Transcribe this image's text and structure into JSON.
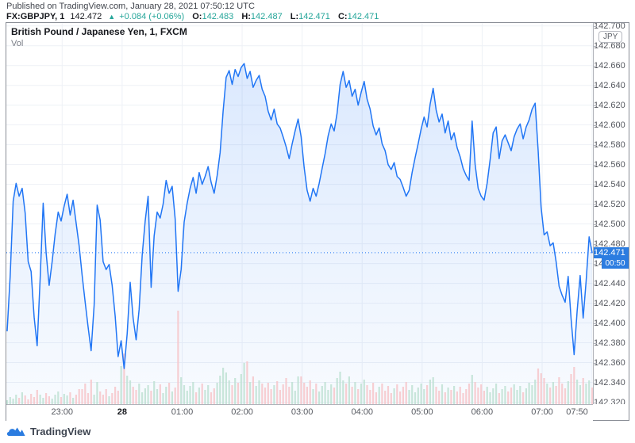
{
  "header": {
    "published_line": "Published on TradingView.com, January 28, 2021 07:50:12 UTC",
    "symbol": "FX:GBPJPY, 1",
    "last_price": "142.472",
    "change_arrow": "▲",
    "change": "+0.084 (+0.06%)",
    "ohlc": [
      {
        "label": "O:",
        "value": "142.483"
      },
      {
        "label": "H:",
        "value": "142.487"
      },
      {
        "label": "L:",
        "value": "142.471"
      },
      {
        "label": "C:",
        "value": "142.471"
      }
    ]
  },
  "chart": {
    "legend_title": "British Pound / Japanese Yen, 1, FXCM",
    "legend_vol": "Vol",
    "currency_badge": "JPY",
    "price_badge": "142.471",
    "countdown_badge": "00:50",
    "colors": {
      "accent_teal": "#26a69a",
      "line_blue": "#2176f5",
      "badge_blue": "#2b7ce0",
      "area_top": "rgba(33,118,245,0.16)",
      "area_bottom": "rgba(33,118,245,0.03)",
      "volume_up": "#c2e2d6",
      "volume_down": "#f6c9cd",
      "grid": "#eef1f6",
      "text_dark": "#16181d",
      "text_gray": "#55585f"
    }
  },
  "footer": {
    "logo_text": "TradingView"
  },
  "chart_data": {
    "type": "line",
    "title": "British Pound / Japanese Yen, 1, FXCM",
    "symbol": "GBPJPY",
    "interval": "1 minute",
    "start_time": "22:05",
    "end_time": "07:50",
    "interval_minutes": 3,
    "total_minutes": 585,
    "current_price": 142.471,
    "ylabel": "JPY",
    "grid": true,
    "legend_position": "top-left",
    "axis": {
      "y_top": 142.703,
      "y_bottom": 142.318
    },
    "y_ticks": [
      142.32,
      142.34,
      142.36,
      142.38,
      142.4,
      142.42,
      142.44,
      142.46,
      142.48,
      142.5,
      142.52,
      142.54,
      142.56,
      142.58,
      142.6,
      142.62,
      142.64,
      142.66,
      142.68,
      142.7
    ],
    "x_ticks": [
      {
        "label": "23:00",
        "min": 55
      },
      {
        "label": "28",
        "min": 115,
        "bold": true
      },
      {
        "label": "01:00",
        "min": 175
      },
      {
        "label": "02:00",
        "min": 235
      },
      {
        "label": "03:00",
        "min": 295
      },
      {
        "label": "04:00",
        "min": 355
      },
      {
        "label": "05:00",
        "min": 415
      },
      {
        "label": "06:00",
        "min": 475
      },
      {
        "label": "07:00",
        "min": 535
      },
      {
        "label": "07:50",
        "min": 585
      }
    ],
    "series": [
      {
        "name": "close",
        "values": [
          142.392,
          142.447,
          142.523,
          142.541,
          142.528,
          142.536,
          142.511,
          142.462,
          142.452,
          142.406,
          142.377,
          142.445,
          142.521,
          142.471,
          142.438,
          142.462,
          142.49,
          142.512,
          142.503,
          142.518,
          142.53,
          142.509,
          142.524,
          142.501,
          142.478,
          142.448,
          142.421,
          142.396,
          142.372,
          142.418,
          142.519,
          142.504,
          142.462,
          142.454,
          142.459,
          142.438,
          142.407,
          142.366,
          142.382,
          142.354,
          142.389,
          142.441,
          142.405,
          142.383,
          142.414,
          142.468,
          142.503,
          142.528,
          142.436,
          142.488,
          142.512,
          142.506,
          142.52,
          142.544,
          142.531,
          142.538,
          142.505,
          142.432,
          142.454,
          142.502,
          142.521,
          142.536,
          142.547,
          142.531,
          142.552,
          142.54,
          142.548,
          142.558,
          142.542,
          142.531,
          142.549,
          142.572,
          142.614,
          142.648,
          142.655,
          142.641,
          142.656,
          142.649,
          142.658,
          142.662,
          142.647,
          142.654,
          142.638,
          142.645,
          142.65,
          142.636,
          142.629,
          142.614,
          142.605,
          142.616,
          142.601,
          142.597,
          142.588,
          142.578,
          142.566,
          142.581,
          142.594,
          142.606,
          142.588,
          142.557,
          142.534,
          142.523,
          142.536,
          142.528,
          142.541,
          142.556,
          142.571,
          142.589,
          142.601,
          142.594,
          142.612,
          142.641,
          142.654,
          142.638,
          142.645,
          142.629,
          142.636,
          142.62,
          142.633,
          142.644,
          142.626,
          142.616,
          142.599,
          142.59,
          142.597,
          142.581,
          142.574,
          142.56,
          142.555,
          142.562,
          142.548,
          142.545,
          142.537,
          142.528,
          142.534,
          142.552,
          142.567,
          142.581,
          142.596,
          142.608,
          142.598,
          142.621,
          142.637,
          142.615,
          142.603,
          142.611,
          142.592,
          142.604,
          142.585,
          142.592,
          142.577,
          142.568,
          142.556,
          142.549,
          142.544,
          142.604,
          142.56,
          142.536,
          142.528,
          142.524,
          142.541,
          142.565,
          142.592,
          142.598,
          142.566,
          142.584,
          142.59,
          142.582,
          142.574,
          142.588,
          142.596,
          142.601,
          142.586,
          142.598,
          142.605,
          142.616,
          142.622,
          142.574,
          142.517,
          142.489,
          142.492,
          142.478,
          142.481,
          142.462,
          142.437,
          142.428,
          142.421,
          142.447,
          142.404,
          142.368,
          142.412,
          142.448,
          142.405,
          142.442,
          142.487,
          142.471
        ]
      }
    ],
    "volume": {
      "name": "Vol",
      "values": [
        5,
        9,
        7,
        12,
        8,
        15,
        11,
        6,
        13,
        9,
        18,
        12,
        8,
        14,
        10,
        7,
        12,
        16,
        9,
        13,
        11,
        15,
        8,
        12,
        19,
        19,
        26,
        14,
        31,
        12,
        28,
        16,
        12,
        19,
        10,
        14,
        22,
        17,
        48,
        64,
        36,
        30,
        22,
        18,
        26,
        15,
        20,
        24,
        17,
        29,
        19,
        25,
        14,
        22,
        27,
        16,
        21,
        118,
        34,
        24,
        17,
        23,
        28,
        15,
        21,
        26,
        18,
        24,
        15,
        20,
        27,
        36,
        46,
        40,
        30,
        24,
        33,
        27,
        38,
        52,
        54,
        28,
        35,
        23,
        30,
        26,
        21,
        27,
        19,
        24,
        29,
        18,
        25,
        33,
        22,
        28,
        17,
        35,
        35,
        27,
        22,
        30,
        19,
        26,
        16,
        23,
        28,
        18,
        25,
        21,
        33,
        41,
        30,
        26,
        35,
        22,
        28,
        19,
        26,
        31,
        24,
        18,
        27,
        15,
        22,
        26,
        17,
        23,
        14,
        20,
        25,
        16,
        22,
        28,
        18,
        24,
        15,
        21,
        26,
        19,
        24,
        31,
        34,
        22,
        17,
        25,
        15,
        21,
        18,
        23,
        16,
        22,
        14,
        19,
        26,
        37,
        28,
        21,
        25,
        17,
        22,
        15,
        20,
        26,
        14,
        19,
        23,
        16,
        21,
        25,
        18,
        23,
        15,
        20,
        27,
        24,
        31,
        45,
        39,
        33,
        26,
        21,
        28,
        23,
        34,
        26,
        20,
        29,
        38,
        47,
        31,
        24,
        33,
        26,
        30,
        21
      ]
    }
  }
}
